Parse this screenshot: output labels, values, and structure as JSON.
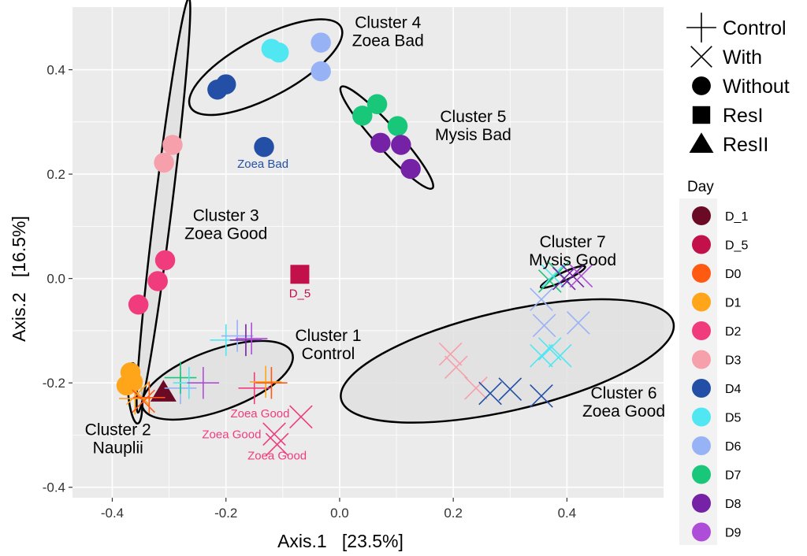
{
  "chart_data": {
    "type": "scatter",
    "xlabel": "Axis.1   [23.5%]",
    "ylabel": "Axis.2   [16.5%]",
    "xlim": [
      -0.47,
      0.57
    ],
    "ylim": [
      -0.42,
      0.52
    ],
    "xticks": [
      -0.4,
      -0.2,
      0.0,
      0.2,
      0.4
    ],
    "xtick_labels": [
      "-0.4",
      "-0.2",
      "0.0",
      "0.2",
      "0.4"
    ],
    "yticks": [
      -0.4,
      -0.2,
      0.0,
      0.2,
      0.4
    ],
    "ytick_labels": [
      "-0.4",
      "-0.2",
      "0.0",
      "0.2",
      "0.4"
    ],
    "grid": true,
    "legend_position": "right",
    "shape_legend": [
      {
        "label": "Control",
        "shape": "plus"
      },
      {
        "label": "With",
        "shape": "cross"
      },
      {
        "label": "Without",
        "shape": "circle"
      },
      {
        "label": "ResI",
        "shape": "square"
      },
      {
        "label": "ResII",
        "shape": "triangle"
      }
    ],
    "day_legend_title": "Day",
    "day_legend": [
      {
        "label": "D_1",
        "color": "#6B0A24"
      },
      {
        "label": "D_5",
        "color": "#C2104A"
      },
      {
        "label": "D0",
        "color": "#FF5A12"
      },
      {
        "label": "D1",
        "color": "#FFA51A"
      },
      {
        "label": "D2",
        "color": "#F03C7D"
      },
      {
        "label": "D3",
        "color": "#F6A0AC"
      },
      {
        "label": "D4",
        "color": "#2350A6"
      },
      {
        "label": "D5",
        "color": "#50E6F2"
      },
      {
        "label": "D6",
        "color": "#98B2F6"
      },
      {
        "label": "D7",
        "color": "#19C77A"
      },
      {
        "label": "D8",
        "color": "#7522A6"
      },
      {
        "label": "D9",
        "color": "#AE4ED8"
      }
    ],
    "points": [
      {
        "x": -0.354,
        "y": -0.05,
        "shape": "circle",
        "day": "D2"
      },
      {
        "x": -0.32,
        "y": -0.005,
        "shape": "circle",
        "day": "D2"
      },
      {
        "x": -0.307,
        "y": 0.035,
        "shape": "circle",
        "day": "D2"
      },
      {
        "x": -0.309,
        "y": 0.222,
        "shape": "circle",
        "day": "D3"
      },
      {
        "x": -0.294,
        "y": 0.256,
        "shape": "circle",
        "day": "D3"
      },
      {
        "x": -0.215,
        "y": 0.362,
        "shape": "circle",
        "day": "D4"
      },
      {
        "x": -0.2,
        "y": 0.372,
        "shape": "circle",
        "day": "D4"
      },
      {
        "x": -0.133,
        "y": 0.252,
        "shape": "circle",
        "day": "D4"
      },
      {
        "x": -0.12,
        "y": 0.44,
        "shape": "circle",
        "day": "D5"
      },
      {
        "x": -0.107,
        "y": 0.433,
        "shape": "circle",
        "day": "D5"
      },
      {
        "x": -0.033,
        "y": 0.397,
        "shape": "circle",
        "day": "D6"
      },
      {
        "x": -0.033,
        "y": 0.452,
        "shape": "circle",
        "day": "D6"
      },
      {
        "x": 0.04,
        "y": 0.312,
        "shape": "circle",
        "day": "D7"
      },
      {
        "x": 0.066,
        "y": 0.334,
        "shape": "circle",
        "day": "D7"
      },
      {
        "x": 0.102,
        "y": 0.292,
        "shape": "circle",
        "day": "D7"
      },
      {
        "x": 0.072,
        "y": 0.26,
        "shape": "circle",
        "day": "D8"
      },
      {
        "x": 0.108,
        "y": 0.256,
        "shape": "circle",
        "day": "D8"
      },
      {
        "x": 0.125,
        "y": 0.21,
        "shape": "circle",
        "day": "D8"
      },
      {
        "x": -0.375,
        "y": -0.205,
        "shape": "circle",
        "day": "D1"
      },
      {
        "x": -0.364,
        "y": -0.198,
        "shape": "circle",
        "day": "D1"
      },
      {
        "x": -0.368,
        "y": -0.18,
        "shape": "circle",
        "day": "D1"
      },
      {
        "x": -0.07,
        "y": 0.008,
        "shape": "square",
        "day": "D_5"
      },
      {
        "x": -0.31,
        "y": -0.218,
        "shape": "triangle",
        "day": "D_1"
      },
      {
        "x": -0.36,
        "y": -0.23,
        "shape": "plus",
        "day": "D1"
      },
      {
        "x": -0.355,
        "y": -0.22,
        "shape": "cross",
        "day": "D1"
      },
      {
        "x": -0.345,
        "y": -0.235,
        "shape": "cross",
        "day": "D0"
      },
      {
        "x": -0.335,
        "y": -0.228,
        "shape": "plus",
        "day": "D0"
      },
      {
        "x": -0.28,
        "y": -0.21,
        "shape": "plus",
        "day": "D6"
      },
      {
        "x": -0.28,
        "y": -0.19,
        "shape": "plus",
        "day": "D7"
      },
      {
        "x": -0.265,
        "y": -0.2,
        "shape": "plus",
        "day": "D5"
      },
      {
        "x": -0.24,
        "y": -0.2,
        "shape": "plus",
        "day": "D9"
      },
      {
        "x": -0.2,
        "y": -0.118,
        "shape": "plus",
        "day": "D5"
      },
      {
        "x": -0.18,
        "y": -0.11,
        "shape": "plus",
        "day": "D6"
      },
      {
        "x": -0.165,
        "y": -0.118,
        "shape": "plus",
        "day": "D8"
      },
      {
        "x": -0.155,
        "y": -0.115,
        "shape": "plus",
        "day": "D9"
      },
      {
        "x": -0.15,
        "y": -0.21,
        "shape": "plus",
        "day": "D2"
      },
      {
        "x": -0.13,
        "y": -0.198,
        "shape": "plus",
        "day": "D1"
      },
      {
        "x": -0.12,
        "y": -0.2,
        "shape": "plus",
        "day": "D0"
      },
      {
        "x": -0.068,
        "y": -0.265,
        "shape": "cross",
        "day": "D2"
      },
      {
        "x": -0.115,
        "y": -0.298,
        "shape": "cross",
        "day": "D2"
      },
      {
        "x": -0.11,
        "y": -0.318,
        "shape": "cross",
        "day": "D2"
      },
      {
        "x": 0.195,
        "y": -0.145,
        "shape": "cross",
        "day": "D3"
      },
      {
        "x": 0.205,
        "y": -0.17,
        "shape": "cross",
        "day": "D3"
      },
      {
        "x": 0.24,
        "y": -0.21,
        "shape": "cross",
        "day": "D3"
      },
      {
        "x": 0.265,
        "y": -0.22,
        "shape": "cross",
        "day": "D4"
      },
      {
        "x": 0.3,
        "y": -0.212,
        "shape": "cross",
        "day": "D4"
      },
      {
        "x": 0.355,
        "y": -0.225,
        "shape": "cross",
        "day": "D4"
      },
      {
        "x": 0.355,
        "y": -0.148,
        "shape": "cross",
        "day": "D5"
      },
      {
        "x": 0.37,
        "y": -0.135,
        "shape": "cross",
        "day": "D5"
      },
      {
        "x": 0.388,
        "y": -0.148,
        "shape": "cross",
        "day": "D5"
      },
      {
        "x": 0.36,
        "y": -0.09,
        "shape": "cross",
        "day": "D6"
      },
      {
        "x": 0.42,
        "y": -0.085,
        "shape": "cross",
        "day": "D6"
      },
      {
        "x": 0.355,
        "y": -0.04,
        "shape": "cross",
        "day": "D6"
      },
      {
        "x": 0.37,
        "y": -0.005,
        "shape": "cross",
        "day": "D7"
      },
      {
        "x": 0.385,
        "y": 0.012,
        "shape": "cross",
        "day": "D7"
      },
      {
        "x": 0.375,
        "y": 0.005,
        "shape": "cross",
        "day": "D5"
      },
      {
        "x": 0.395,
        "y": 0.0,
        "shape": "cross",
        "day": "D8"
      },
      {
        "x": 0.41,
        "y": 0.005,
        "shape": "cross",
        "day": "D8"
      },
      {
        "x": 0.425,
        "y": 0.005,
        "shape": "cross",
        "day": "D9"
      }
    ],
    "ellipses": [
      {
        "name": "Cluster 1",
        "cx": -0.215,
        "cy": -0.195,
        "rx": 0.14,
        "ry": 0.058,
        "angle": -20,
        "fill": true
      },
      {
        "name": "Cluster 2",
        "cx": -0.36,
        "cy": -0.22,
        "rx": 0.012,
        "ry": 0.058,
        "angle": -5,
        "fill": false
      },
      {
        "name": "Cluster 3",
        "cx": -0.31,
        "cy": 0.14,
        "rx": 0.015,
        "ry": 0.4,
        "angle": 7,
        "fill": true
      },
      {
        "name": "Cluster 4",
        "cx": -0.13,
        "cy": 0.405,
        "rx": 0.15,
        "ry": 0.057,
        "angle": -28,
        "fill": false
      },
      {
        "name": "Cluster 5",
        "cx": 0.083,
        "cy": 0.27,
        "rx": 0.12,
        "ry": 0.022,
        "angle": 48,
        "fill": false
      },
      {
        "name": "Cluster 6",
        "cx": 0.295,
        "cy": -0.158,
        "rx": 0.3,
        "ry": 0.095,
        "angle": -13,
        "fill": true
      },
      {
        "name": "Cluster 7",
        "cx": 0.393,
        "cy": 0.003,
        "rx": 0.043,
        "ry": 0.008,
        "angle": -25,
        "fill": false
      }
    ],
    "cluster_labels": [
      {
        "lines": [
          "Cluster 1",
          "Control"
        ],
        "x": -0.02,
        "y": -0.12
      },
      {
        "lines": [
          "Cluster 2",
          "Nauplii"
        ],
        "x": -0.39,
        "y": -0.3
      },
      {
        "lines": [
          "Cluster 3",
          "Zoea Good"
        ],
        "x": -0.2,
        "y": 0.11
      },
      {
        "lines": [
          "Cluster 4",
          "Zoea Bad"
        ],
        "x": 0.085,
        "y": 0.48
      },
      {
        "lines": [
          "Cluster 5",
          "Mysis Bad"
        ],
        "x": 0.235,
        "y": 0.3
      },
      {
        "lines": [
          "Cluster 6",
          "Zoea Good"
        ],
        "x": 0.5,
        "y": -0.23
      },
      {
        "lines": [
          "Cluster 7",
          "Mysis Good"
        ],
        "x": 0.41,
        "y": 0.06
      }
    ],
    "annotations": [
      {
        "text": "Zoea Bad",
        "x": -0.135,
        "y": 0.212,
        "color": "#2350A6"
      },
      {
        "text": "D_5",
        "x": -0.07,
        "y": -0.036,
        "color": "#C2104A"
      },
      {
        "text": "Zoea Good",
        "x": -0.14,
        "y": -0.266,
        "color": "#F03C7D"
      },
      {
        "text": "Zoea Good",
        "x": -0.19,
        "y": -0.306,
        "color": "#F03C7D"
      },
      {
        "text": "Zoea Good",
        "x": -0.11,
        "y": -0.347,
        "color": "#F03C7D"
      }
    ]
  }
}
